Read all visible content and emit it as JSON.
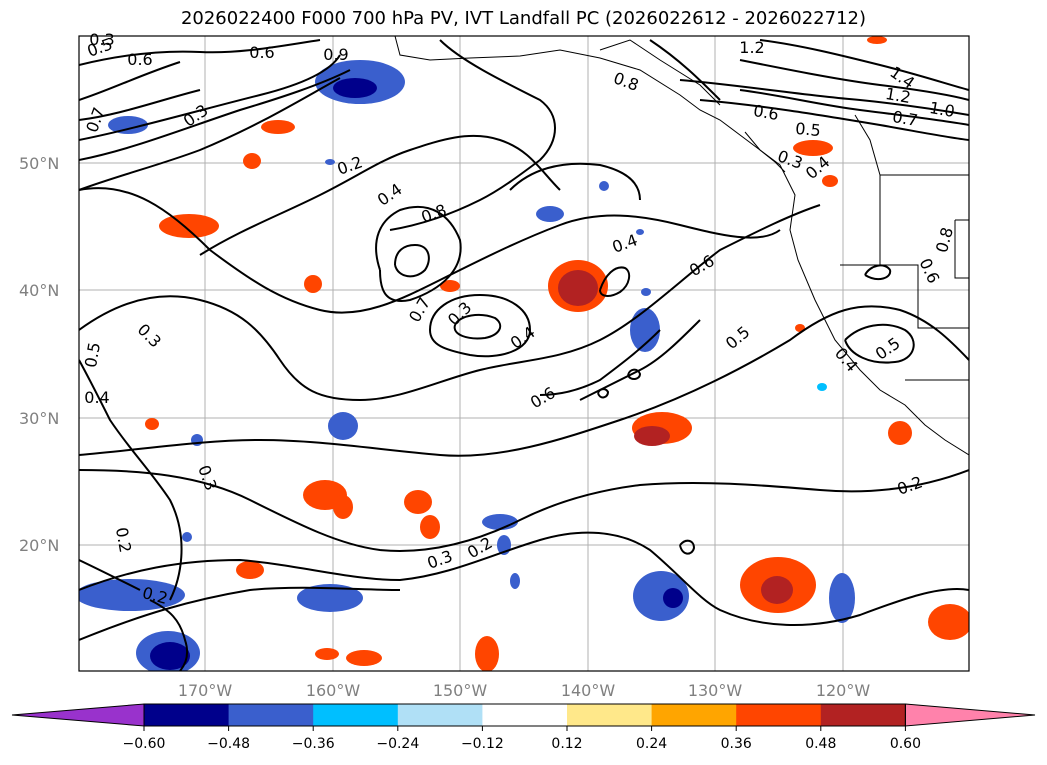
{
  "title": "2026022400 F000 700 hPa PV, IVT Landfall PC (2026022612 - 2026022712)",
  "map": {
    "lat_labels": [
      "50°N",
      "40°N",
      "30°N",
      "20°N"
    ],
    "lon_labels": [
      "170°W",
      "160°W",
      "150°W",
      "140°W",
      "130°W",
      "120°W"
    ],
    "contour_labels": [
      "0.5",
      "0.6",
      "0.6",
      "0.9",
      "0.7",
      "0.3",
      "0.2",
      "1.2",
      "0.8",
      "0.6",
      "0.5",
      "1.4",
      "1.2",
      "1.0",
      "0.7",
      "0.3",
      "0.4",
      "0.4",
      "0.8",
      "0.4",
      "0.7",
      "0.3",
      "0.4",
      "0.6",
      "0.6",
      "0.5",
      "0.3",
      "0.5",
      "0.4",
      "0.3",
      "0.3",
      "0.2",
      "0.3",
      "0.2",
      "0.2",
      "0.2",
      "0.4",
      "0.5",
      "0.8",
      "0.6"
    ]
  },
  "colorbar": {
    "ticks": [
      "−0.60",
      "−0.48",
      "−0.36",
      "−0.24",
      "−0.12",
      "0.12",
      "0.24",
      "0.36",
      "0.48",
      "0.60"
    ],
    "colors": [
      "#9932cc",
      "#00008b",
      "#3a5fcd",
      "#00bfff",
      "#b0e0f6",
      "#ffffff",
      "#ffe88a",
      "#ffa500",
      "#ff4500",
      "#b22222",
      "#ff82ab"
    ]
  }
}
